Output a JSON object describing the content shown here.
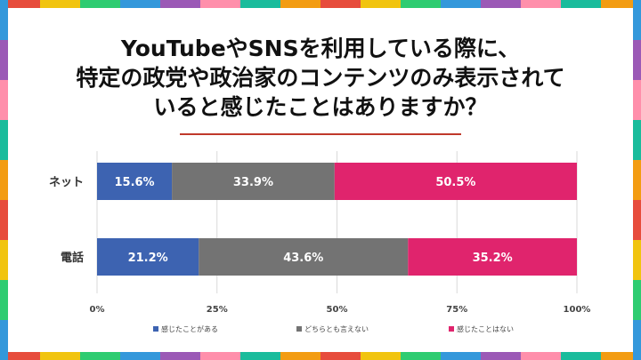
{
  "title": "YouTubeやSNSを利用している際に、\n特定の政党や政治家のコンテンツのみ表示されて\nいると感じたことはありますか？",
  "colors": {
    "title_rule": "#c0392b",
    "border": [
      "#e74c3c",
      "#f1c40f",
      "#2ecc71",
      "#3498db",
      "#9b59b6",
      "#ff8fab",
      "#1abc9c",
      "#f39c12"
    ]
  },
  "chart_data": {
    "type": "bar",
    "orientation": "horizontal",
    "stacked": true,
    "title": "YouTubeやSNSを利用している際に、特定の政党や政治家のコンテンツのみ表示されていると感じたことはありますか？",
    "categories": [
      "ネット",
      "電話"
    ],
    "series": [
      {
        "name": "感じたことがある",
        "values": [
          15.6,
          21.2
        ],
        "labels": [
          "15.6%",
          "21.2%"
        ],
        "color": "#3d63b1"
      },
      {
        "name": "どちらとも言えない",
        "values": [
          33.9,
          43.6
        ],
        "labels": [
          "33.9%",
          "43.6%"
        ],
        "color": "#737373"
      },
      {
        "name": "感じたことはない",
        "values": [
          50.5,
          35.2
        ],
        "labels": [
          "50.5%",
          "35.2%"
        ],
        "color": "#e0246d"
      }
    ],
    "xlim": [
      0,
      100
    ],
    "xticks": [
      0,
      25,
      50,
      75,
      100
    ],
    "xtick_labels": [
      "0%",
      "25%",
      "50%",
      "75%",
      "100%"
    ],
    "grid": true,
    "legend_position": "bottom"
  }
}
